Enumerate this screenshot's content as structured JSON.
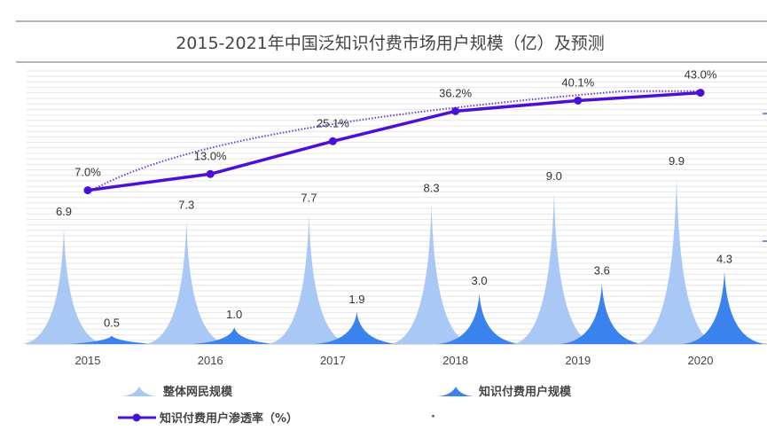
{
  "chart_data": {
    "type": "bar",
    "title": "2015-2021年中国泛知识付费市场用户规模（亿）及预测",
    "categories": [
      "2015",
      "2016",
      "2017",
      "2018",
      "2019",
      "2020"
    ],
    "series": [
      {
        "name": "整体网民规模",
        "kind": "spike-bar",
        "color": "#a9c8f5",
        "values": [
          6.9,
          7.3,
          7.7,
          8.3,
          9.0,
          9.9
        ],
        "labels": [
          "6.9",
          "7.3",
          "7.7",
          "8.3",
          "9.0",
          "9.9"
        ]
      },
      {
        "name": "知识付费用户规模",
        "kind": "spike-bar",
        "color": "#3a82ee",
        "values": [
          0.5,
          1.0,
          1.9,
          3.0,
          3.6,
          4.3
        ],
        "labels": [
          "0.5",
          "1.0",
          "1.9",
          "3.0",
          "3.6",
          "4.3"
        ]
      },
      {
        "name": "知识付费用户渗透率（%）",
        "kind": "line",
        "axis": "secondary",
        "color": "#4a10d8",
        "values": [
          7.0,
          13.0,
          25.1,
          36.2,
          40.1,
          43.0
        ],
        "labels": [
          "7.0%",
          "13.0%",
          "25.1%",
          "36.2%",
          "40.1%",
          "43.0%"
        ]
      }
    ],
    "trendline": {
      "of": "知识付费用户渗透率（%）",
      "style": "dotted",
      "shape": "logarithmic",
      "color": "#6a3fd8"
    },
    "grid": true,
    "legend_placement": "bottom",
    "extra_legend_mark": "·"
  }
}
